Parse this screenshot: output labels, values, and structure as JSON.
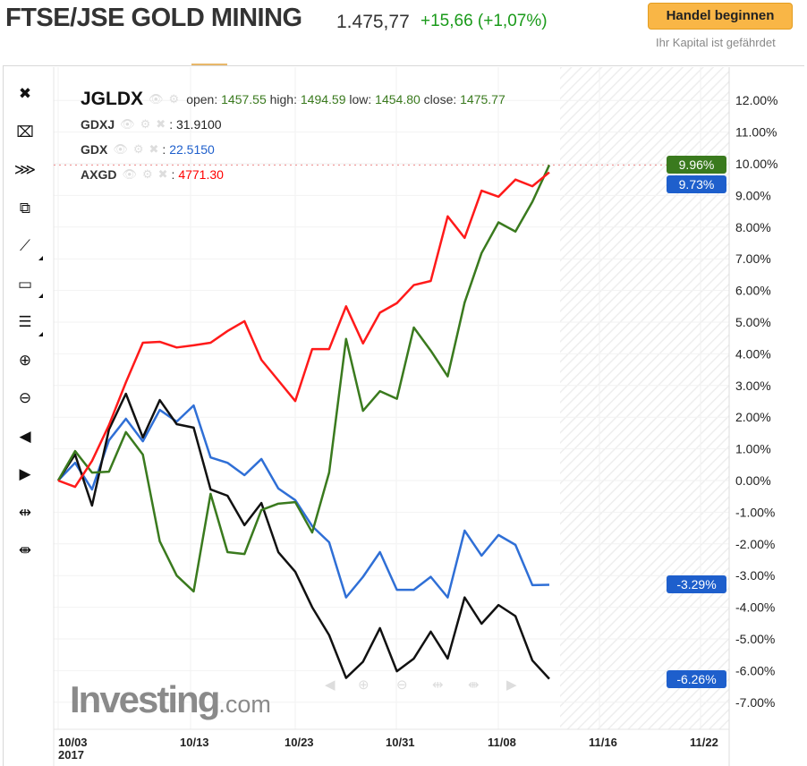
{
  "header": {
    "title": "FTSE/JSE GOLD MINING",
    "price": "1.475,77",
    "change": "+15,66 (+1,07%)",
    "trade_button": "Handel beginnen",
    "risk_note": "Ihr Kapital ist gefährdet"
  },
  "toolbar": {
    "items": [
      {
        "icon": "close-icon",
        "glyph": "✖"
      },
      {
        "icon": "delete-drawing-icon",
        "glyph": "⌧"
      },
      {
        "icon": "delete-all-icon",
        "glyph": "⋙"
      },
      {
        "icon": "copy-windows-icon",
        "glyph": "⧉"
      },
      {
        "icon": "trend-line-icon",
        "glyph": "⟋"
      },
      {
        "icon": "rectangle-icon",
        "glyph": "▭"
      },
      {
        "icon": "horizontal-lines-icon",
        "glyph": "☰"
      },
      {
        "icon": "zoom-in-icon",
        "glyph": "⊕"
      },
      {
        "icon": "zoom-out-icon",
        "glyph": "⊖"
      },
      {
        "icon": "scroll-left-icon",
        "glyph": "◀"
      },
      {
        "icon": "scroll-right-icon",
        "glyph": "▶"
      },
      {
        "icon": "zoom-expand-icon",
        "glyph": "⇹"
      },
      {
        "icon": "zoom-contract-icon",
        "glyph": "⇼"
      }
    ]
  },
  "legend": {
    "main": {
      "symbol": "JGLDX",
      "open_label": "open:",
      "open": "1457.55",
      "high_label": "high:",
      "high": "1494.59",
      "low_label": "low:",
      "low": "1454.80",
      "close_label": "close:",
      "close": "1475.77"
    },
    "comparisons": [
      {
        "symbol": "GDXJ",
        "value": "31.9100",
        "color": "#222222"
      },
      {
        "symbol": "GDX",
        "value": "22.5150",
        "color": "#1e5fcc"
      },
      {
        "symbol": "AXGD",
        "value": "4771.30",
        "color": "#ff0000"
      }
    ],
    "sep": ":"
  },
  "watermark": {
    "brand": "Investing",
    "suffix": ".com"
  },
  "chart_data": {
    "type": "line",
    "title": "",
    "xlabel": "",
    "ylabel": "",
    "ylim": [
      -7.5,
      12.5
    ],
    "y_ticks": [
      "12.00%",
      "11.00%",
      "10.00%",
      "9.00%",
      "8.00%",
      "7.00%",
      "6.00%",
      "5.00%",
      "4.00%",
      "3.00%",
      "2.00%",
      "1.00%",
      "0.00%",
      "-1.00%",
      "-2.00%",
      "-3.00%",
      "-4.00%",
      "-5.00%",
      "-6.00%",
      "-7.00%"
    ],
    "y_tick_values": [
      12,
      11,
      10,
      9,
      8,
      7,
      6,
      5,
      4,
      3,
      2,
      1,
      0,
      -1,
      -2,
      -3,
      -4,
      -5,
      -6,
      -7
    ],
    "x_ticks": [
      {
        "label": "10/03",
        "sub": "2017"
      },
      {
        "label": "10/13"
      },
      {
        "label": "10/23"
      },
      {
        "label": "10/31"
      },
      {
        "label": "11/08"
      },
      {
        "label": "11/16"
      },
      {
        "label": "11/22"
      }
    ],
    "x": [
      "10/03",
      "10/04",
      "10/05",
      "10/06",
      "10/09",
      "10/10",
      "10/11",
      "10/12",
      "10/13",
      "10/16",
      "10/17",
      "10/18",
      "10/19",
      "10/20",
      "10/23",
      "10/24",
      "10/25",
      "10/26",
      "10/27",
      "10/30",
      "10/31",
      "11/01",
      "11/02",
      "11/03",
      "11/06",
      "11/07",
      "11/08",
      "11/09",
      "11/10",
      "11/13"
    ],
    "grid": true,
    "series": [
      {
        "name": "JGLDX",
        "color": "#3a7a1e",
        "values": [
          0,
          0.93,
          0.25,
          0.28,
          1.53,
          0.82,
          -1.92,
          -3.0,
          -3.5,
          -0.42,
          -2.26,
          -2.32,
          -0.93,
          -0.73,
          -0.68,
          -1.64,
          0.25,
          4.47,
          2.2,
          2.82,
          2.58,
          4.83,
          4.1,
          3.29,
          5.62,
          7.18,
          8.15,
          7.86,
          8.8,
          9.96
        ]
      },
      {
        "name": "GDXJ",
        "color": "#111111",
        "values": [
          0,
          0.82,
          -0.79,
          1.61,
          2.74,
          1.36,
          2.54,
          1.78,
          1.67,
          -0.28,
          -0.48,
          -1.41,
          -0.71,
          -2.26,
          -2.88,
          -4.0,
          -4.88,
          -6.23,
          -5.72,
          -4.66,
          -6.02,
          -5.62,
          -4.77,
          -5.62,
          -3.69,
          -4.52,
          -3.93,
          -4.28,
          -5.68,
          -6.26
        ]
      },
      {
        "name": "GDX",
        "color": "#2f6fd6",
        "values": [
          0,
          0.56,
          -0.28,
          1.27,
          1.95,
          1.24,
          2.23,
          1.86,
          2.37,
          0.73,
          0.56,
          0.17,
          0.68,
          -0.25,
          -0.62,
          -1.44,
          -1.95,
          -3.69,
          -3.04,
          -2.26,
          -3.45,
          -3.45,
          -3.04,
          -3.69,
          -1.58,
          -2.37,
          -1.72,
          -2.03,
          -3.3,
          -3.29
        ]
      },
      {
        "name": "AXGD",
        "color": "#ff1a1a",
        "values": [
          0,
          -0.2,
          0.62,
          1.75,
          3.1,
          4.35,
          4.38,
          4.2,
          4.27,
          4.35,
          4.72,
          5.03,
          3.81,
          3.16,
          2.51,
          4.15,
          4.15,
          5.5,
          4.33,
          5.3,
          5.6,
          6.17,
          6.3,
          8.34,
          7.66,
          9.15,
          8.96,
          9.5,
          9.29,
          9.73
        ]
      }
    ],
    "price_tags": [
      {
        "label": "9.96%",
        "value": 9.96,
        "color": "#3a7a1e"
      },
      {
        "label": "9.73%",
        "value": 9.73,
        "color": "#1e5fcc"
      },
      {
        "label": "-3.29%",
        "value": -3.29,
        "color": "#1e5fcc"
      },
      {
        "label": "-6.26%",
        "value": -6.26,
        "color": "#1e5fcc"
      }
    ],
    "reference_line": {
      "value": 9.96,
      "color": "#e88"
    },
    "legend": "top-left"
  }
}
